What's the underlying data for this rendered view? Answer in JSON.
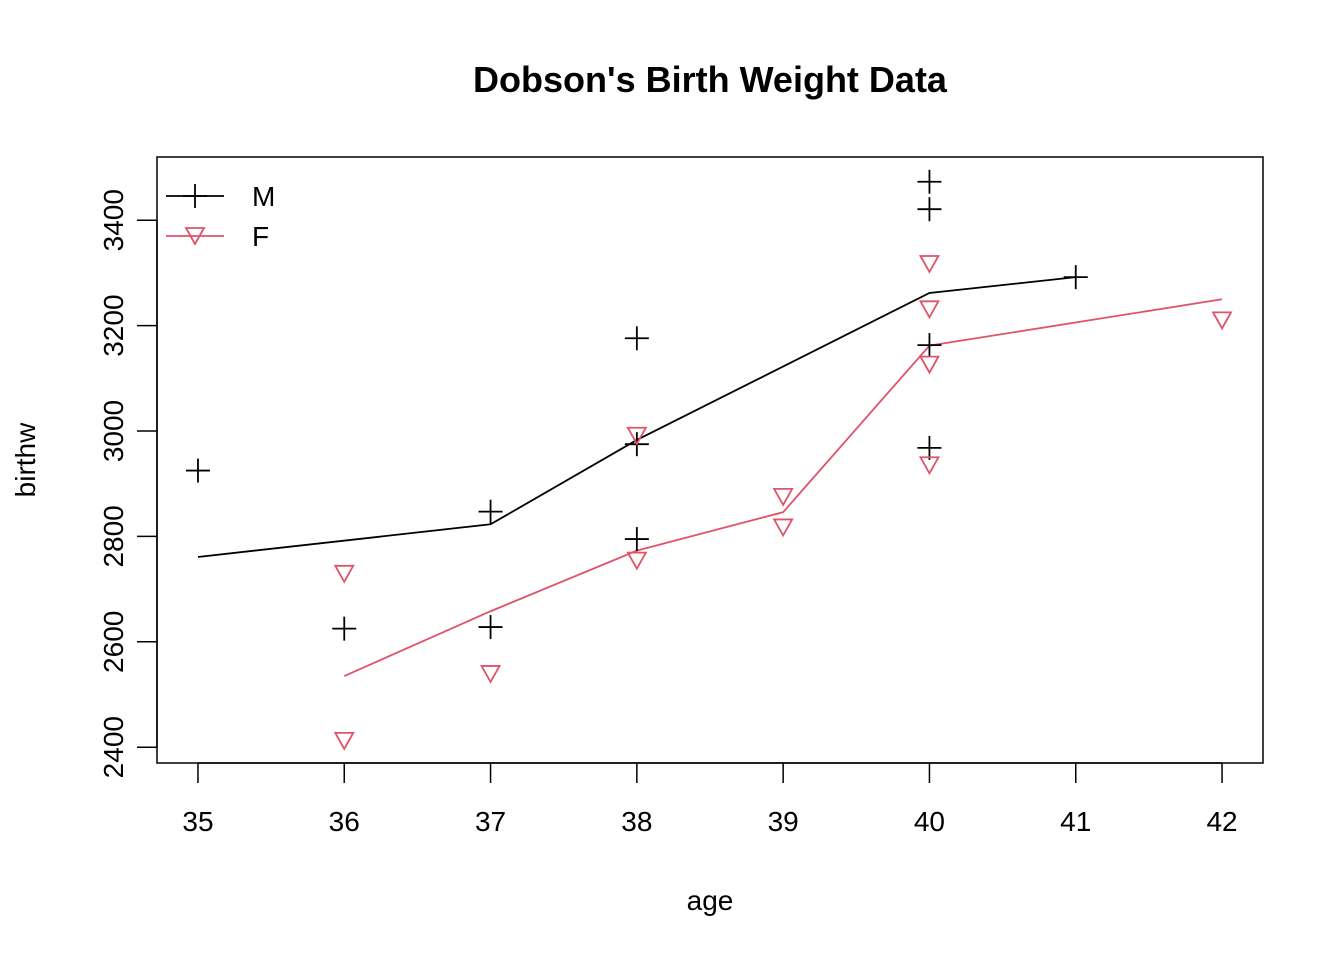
{
  "chart_data": {
    "type": "scatter",
    "title": "Dobson's Birth Weight Data",
    "xlabel": "age",
    "ylabel": "birthw",
    "xlim": [
      34.72,
      42.28
    ],
    "ylim": [
      2370,
      3520
    ],
    "x_ticks": [
      35,
      36,
      37,
      38,
      39,
      40,
      41,
      42
    ],
    "y_ticks": [
      2400,
      2600,
      2800,
      3000,
      3200,
      3400
    ],
    "legend": {
      "position": "top-left",
      "entries": [
        "M",
        "F"
      ]
    },
    "series": [
      {
        "name": "M",
        "color": "#000000",
        "marker": "plus",
        "points": [
          [
            35,
            2925
          ],
          [
            36,
            2625
          ],
          [
            37,
            2847
          ],
          [
            37,
            2628
          ],
          [
            38,
            3176
          ],
          [
            38,
            2975
          ],
          [
            38,
            2795
          ],
          [
            40,
            3473
          ],
          [
            40,
            3421
          ],
          [
            40,
            3163
          ],
          [
            40,
            2968
          ],
          [
            41,
            3292
          ]
        ],
        "fit_line": [
          [
            35,
            2761
          ],
          [
            37,
            2823
          ],
          [
            38,
            2983
          ],
          [
            40,
            3262
          ],
          [
            41,
            3292
          ]
        ]
      },
      {
        "name": "F",
        "color": "#DF536B",
        "marker": "triangle-down",
        "points": [
          [
            36,
            2729
          ],
          [
            36,
            2412
          ],
          [
            37,
            2539
          ],
          [
            38,
            2991
          ],
          [
            38,
            2754
          ],
          [
            39,
            2875
          ],
          [
            39,
            2817
          ],
          [
            40,
            3317
          ],
          [
            40,
            3231
          ],
          [
            40,
            3126
          ],
          [
            40,
            2935
          ],
          [
            42,
            3210
          ]
        ],
        "fit_line": [
          [
            36,
            2535
          ],
          [
            37,
            2658
          ],
          [
            38,
            2773
          ],
          [
            39,
            2846
          ],
          [
            40,
            3162
          ],
          [
            42,
            3250
          ]
        ]
      }
    ]
  }
}
